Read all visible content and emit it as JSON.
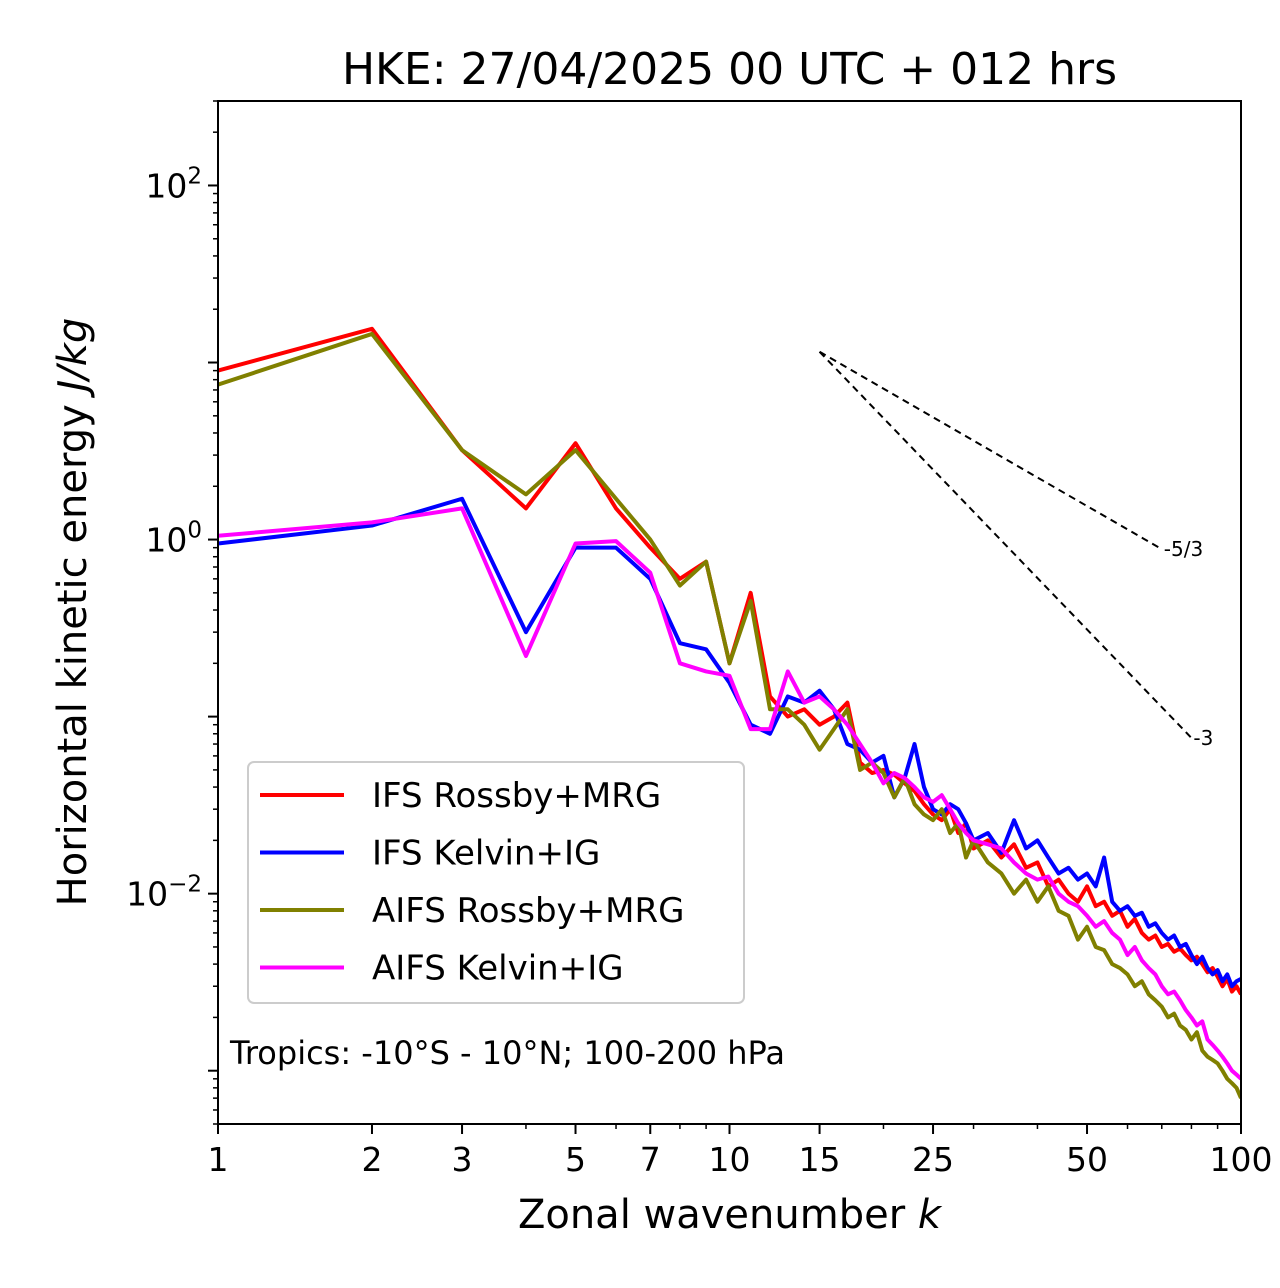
{
  "chart_data": {
    "type": "line",
    "title": "HKE: 27/04/2025 00 UTC + 012 hrs",
    "xlabel": "Zonal wavenumber",
    "xlabel_symbol": "k",
    "ylabel": "Horizontal kinetic energy",
    "ylabel_units": "J/kg",
    "x_scale": "log",
    "y_scale": "log",
    "xlim": [
      1,
      100
    ],
    "ylim": [
      0.0005,
      300
    ],
    "x_ticks": [
      1,
      2,
      3,
      5,
      7,
      10,
      15,
      25,
      50,
      100
    ],
    "x_tick_labels": [
      "1",
      "2",
      "3",
      "5",
      "7",
      "10",
      "15",
      "25",
      "50",
      "100"
    ],
    "y_ticks": [
      {
        "value": 100,
        "base": "10",
        "exp": "2"
      },
      {
        "value": 1,
        "base": "10",
        "exp": "0"
      },
      {
        "value": 0.01,
        "base": "10",
        "exp": "−2"
      }
    ],
    "grid": false,
    "legend_position": "lower-left",
    "annotation": "Tropics: -10°S - 10°N; 100-200 hPa",
    "reference_slopes": [
      {
        "label": "-5/3",
        "slope": -1.6667,
        "x": [
          15,
          70
        ],
        "y_start": 11.5
      },
      {
        "label": "-3",
        "slope": -3,
        "x": [
          15,
          80
        ],
        "y_start": 11.5
      }
    ],
    "series": [
      {
        "name": "IFS Rossby+MRG",
        "color": "#ff0000",
        "x": [
          1,
          2,
          3,
          4,
          5,
          6,
          7,
          8,
          9,
          10,
          11,
          12,
          13,
          14,
          15,
          16,
          17,
          18,
          19,
          20,
          21,
          22,
          23,
          24,
          25,
          26,
          27,
          28,
          29,
          30,
          32,
          34,
          36,
          38,
          40,
          42,
          44,
          46,
          48,
          50,
          52,
          54,
          56,
          58,
          60,
          62,
          64,
          66,
          68,
          70,
          72,
          74,
          76,
          78,
          80,
          82,
          84,
          86,
          88,
          90,
          92,
          94,
          96,
          98,
          100
        ],
        "y": [
          9.0,
          15.5,
          3.2,
          1.5,
          3.5,
          1.5,
          0.9,
          0.6,
          0.75,
          0.2,
          0.5,
          0.13,
          0.1,
          0.11,
          0.09,
          0.1,
          0.12,
          0.055,
          0.048,
          0.05,
          0.047,
          0.042,
          0.038,
          0.032,
          0.028,
          0.026,
          0.03,
          0.022,
          0.025,
          0.018,
          0.02,
          0.016,
          0.019,
          0.014,
          0.015,
          0.011,
          0.012,
          0.01,
          0.009,
          0.011,
          0.0085,
          0.009,
          0.0075,
          0.008,
          0.0065,
          0.0072,
          0.006,
          0.0055,
          0.0058,
          0.005,
          0.0052,
          0.0047,
          0.0049,
          0.0045,
          0.0042,
          0.0044,
          0.004,
          0.0036,
          0.0038,
          0.0034,
          0.003,
          0.0033,
          0.0028,
          0.003,
          0.0027
        ]
      },
      {
        "name": "IFS Kelvin+IG",
        "color": "#0000ff",
        "x": [
          1,
          2,
          3,
          4,
          5,
          6,
          7,
          8,
          9,
          10,
          11,
          12,
          13,
          14,
          15,
          16,
          17,
          18,
          19,
          20,
          21,
          22,
          23,
          24,
          25,
          26,
          27,
          28,
          29,
          30,
          32,
          34,
          36,
          38,
          40,
          42,
          44,
          46,
          48,
          50,
          52,
          54,
          56,
          58,
          60,
          62,
          64,
          66,
          68,
          70,
          72,
          74,
          76,
          78,
          80,
          82,
          84,
          86,
          88,
          90,
          92,
          94,
          96,
          98,
          100
        ],
        "y": [
          0.95,
          1.2,
          1.7,
          0.3,
          0.9,
          0.9,
          0.6,
          0.26,
          0.24,
          0.155,
          0.09,
          0.08,
          0.13,
          0.12,
          0.14,
          0.11,
          0.07,
          0.065,
          0.055,
          0.06,
          0.035,
          0.045,
          0.07,
          0.04,
          0.03,
          0.028,
          0.032,
          0.03,
          0.025,
          0.02,
          0.022,
          0.017,
          0.026,
          0.018,
          0.02,
          0.016,
          0.013,
          0.014,
          0.012,
          0.013,
          0.011,
          0.016,
          0.009,
          0.008,
          0.0085,
          0.0075,
          0.0078,
          0.0065,
          0.0068,
          0.006,
          0.0055,
          0.0058,
          0.005,
          0.0052,
          0.0045,
          0.004,
          0.0044,
          0.0038,
          0.0035,
          0.0037,
          0.0032,
          0.0035,
          0.003,
          0.0032,
          0.0033
        ]
      },
      {
        "name": "AIFS Rossby+MRG",
        "color": "#808000",
        "x": [
          1,
          2,
          3,
          4,
          5,
          6,
          7,
          8,
          9,
          10,
          11,
          12,
          13,
          14,
          15,
          16,
          17,
          18,
          19,
          20,
          21,
          22,
          23,
          24,
          25,
          26,
          27,
          28,
          29,
          30,
          32,
          34,
          36,
          38,
          40,
          42,
          44,
          46,
          48,
          50,
          52,
          54,
          56,
          58,
          60,
          62,
          64,
          66,
          68,
          70,
          72,
          74,
          76,
          78,
          80,
          82,
          84,
          86,
          88,
          90,
          92,
          94,
          96,
          98,
          100
        ],
        "y": [
          7.5,
          14.5,
          3.2,
          1.8,
          3.2,
          1.7,
          1.0,
          0.55,
          0.75,
          0.2,
          0.45,
          0.11,
          0.11,
          0.09,
          0.065,
          0.085,
          0.11,
          0.05,
          0.055,
          0.048,
          0.035,
          0.045,
          0.032,
          0.028,
          0.026,
          0.03,
          0.022,
          0.025,
          0.016,
          0.02,
          0.015,
          0.013,
          0.01,
          0.012,
          0.009,
          0.011,
          0.008,
          0.0075,
          0.0055,
          0.0065,
          0.005,
          0.0048,
          0.004,
          0.0038,
          0.0035,
          0.003,
          0.0032,
          0.0027,
          0.0025,
          0.0023,
          0.002,
          0.0021,
          0.0018,
          0.0017,
          0.0015,
          0.00165,
          0.0013,
          0.0012,
          0.00115,
          0.0011,
          0.001,
          0.0009,
          0.00085,
          0.0008,
          0.0007
        ]
      },
      {
        "name": "AIFS Kelvin+IG",
        "color": "#ff00ff",
        "x": [
          1,
          2,
          3,
          4,
          5,
          6,
          7,
          8,
          9,
          10,
          11,
          12,
          13,
          14,
          15,
          16,
          17,
          18,
          19,
          20,
          21,
          22,
          23,
          24,
          25,
          26,
          27,
          28,
          29,
          30,
          32,
          34,
          36,
          38,
          40,
          42,
          44,
          46,
          48,
          50,
          52,
          54,
          56,
          58,
          60,
          62,
          64,
          66,
          68,
          70,
          72,
          74,
          76,
          78,
          80,
          82,
          84,
          86,
          88,
          90,
          92,
          94,
          96,
          98,
          100
        ],
        "y": [
          1.05,
          1.25,
          1.5,
          0.22,
          0.95,
          0.98,
          0.65,
          0.2,
          0.18,
          0.17,
          0.085,
          0.085,
          0.18,
          0.12,
          0.13,
          0.11,
          0.09,
          0.07,
          0.055,
          0.042,
          0.048,
          0.045,
          0.04,
          0.035,
          0.033,
          0.036,
          0.03,
          0.025,
          0.022,
          0.02,
          0.019,
          0.018,
          0.015,
          0.013,
          0.012,
          0.0125,
          0.01,
          0.009,
          0.0085,
          0.0075,
          0.0065,
          0.007,
          0.006,
          0.0055,
          0.0045,
          0.005,
          0.0042,
          0.0038,
          0.0035,
          0.003,
          0.0027,
          0.0028,
          0.0025,
          0.0022,
          0.002,
          0.0018,
          0.0019,
          0.0015,
          0.0014,
          0.0013,
          0.0012,
          0.0011,
          0.001,
          0.00095,
          0.0009
        ]
      }
    ]
  }
}
